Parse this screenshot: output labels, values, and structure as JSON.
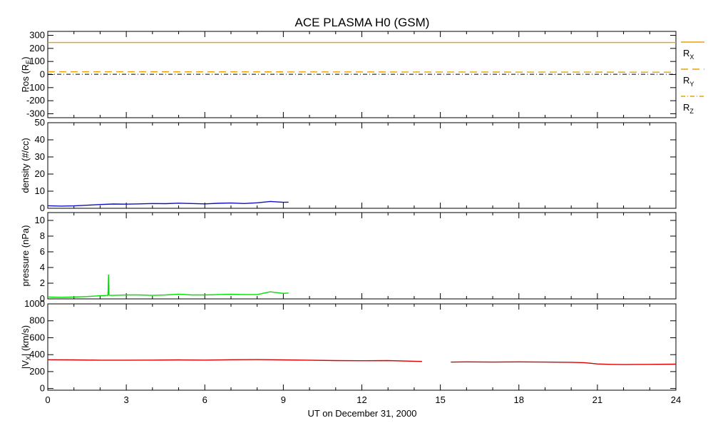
{
  "chart_data": {
    "title": "ACE PLASMA H0 (GSM)",
    "x_label": "UT on December 31, 2000",
    "x_range": [
      0,
      24
    ],
    "x_ticks": [
      "0",
      "3",
      "6",
      "9",
      "12",
      "15",
      "18",
      "21",
      "24"
    ],
    "panels": [
      {
        "id": "pos",
        "type": "line",
        "ylabel": "Pos (RE)",
        "ylabel_main": "Pos (R",
        "ylabel_sub": "E",
        "ylabel_end": ")",
        "ylim": [
          -330,
          330
        ],
        "yticks": [
          -300,
          -200,
          -100,
          0,
          100,
          200,
          300
        ],
        "series": [
          {
            "name": "RX",
            "main": "R",
            "sub": "X",
            "style": "solid",
            "color": "#e8a200",
            "x": [
              0,
              24
            ],
            "y": [
              245,
              245
            ]
          },
          {
            "name": "RY",
            "main": "R",
            "sub": "Y",
            "style": "dashed",
            "color": "#e8a200",
            "x": [
              0,
              24
            ],
            "y": [
              22,
              18
            ]
          },
          {
            "name": "RZ",
            "main": "R",
            "sub": "Z",
            "style": "dashdot",
            "color": "#e8a200",
            "x": [
              0,
              24
            ],
            "y": [
              2,
              2
            ]
          }
        ]
      },
      {
        "id": "density",
        "type": "line",
        "ylabel": "density (#/cc)",
        "ylim": [
          0,
          50
        ],
        "yticks": [
          0,
          10,
          20,
          30,
          40,
          50
        ],
        "color": "#1010c0",
        "series": [
          {
            "x": [
              0,
              0.5,
              1,
              1.5,
              2,
              2.5,
              3,
              3.5,
              4,
              4.5,
              5,
              5.5,
              6,
              6.5,
              7,
              7.5,
              8,
              8.5,
              9,
              9.2
            ],
            "y": [
              1.5,
              1.3,
              1.4,
              1.8,
              2.2,
              2.5,
              2.4,
              2.6,
              2.8,
              2.7,
              3.0,
              2.8,
              2.6,
              2.9,
              3.1,
              2.8,
              3.2,
              4.0,
              3.5,
              3.6
            ]
          }
        ]
      },
      {
        "id": "pressure",
        "type": "line",
        "ylabel": "pressure (nPa)",
        "ylim": [
          0,
          11
        ],
        "yticks": [
          0,
          2,
          4,
          6,
          8,
          10
        ],
        "color": "#00e000",
        "series": [
          {
            "x": [
              0,
              0.5,
              1,
              1.5,
              2,
              2.3,
              2.32,
              2.34,
              2.36,
              2.5,
              3,
              3.5,
              4,
              4.5,
              5,
              5.5,
              6,
              6.5,
              7,
              7.5,
              8,
              8.5,
              9,
              9.2
            ],
            "y": [
              0.25,
              0.2,
              0.25,
              0.3,
              0.4,
              0.45,
              3.1,
              0.5,
              0.45,
              0.45,
              0.5,
              0.5,
              0.45,
              0.5,
              0.6,
              0.5,
              0.5,
              0.55,
              0.6,
              0.55,
              0.55,
              0.9,
              0.7,
              0.75
            ]
          }
        ]
      },
      {
        "id": "vx",
        "type": "line",
        "ylabel": "|VX| (km/s)",
        "ylabel_pre": "|V",
        "ylabel_sub": "X",
        "ylabel_end": "| (km/s)",
        "ylim": [
          -20,
          1000
        ],
        "yticks": [
          0,
          200,
          400,
          600,
          800,
          1000
        ],
        "color": "#dd0000",
        "series": [
          {
            "x": [
              0,
              1,
              2,
              3,
              4,
              5,
              6,
              7,
              8,
              9,
              10,
              11,
              12,
              13,
              14,
              14.3
            ],
            "y": [
              340,
              338,
              335,
              335,
              336,
              338,
              336,
              340,
              342,
              338,
              335,
              330,
              328,
              330,
              322,
              320
            ]
          },
          {
            "x": [
              15.4,
              16,
              17,
              18,
              19,
              20,
              20.5,
              21,
              21.5,
              22,
              23,
              24
            ],
            "y": [
              312,
              315,
              312,
              315,
              312,
              310,
              305,
              290,
              285,
              283,
              285,
              288
            ]
          }
        ]
      }
    ]
  }
}
